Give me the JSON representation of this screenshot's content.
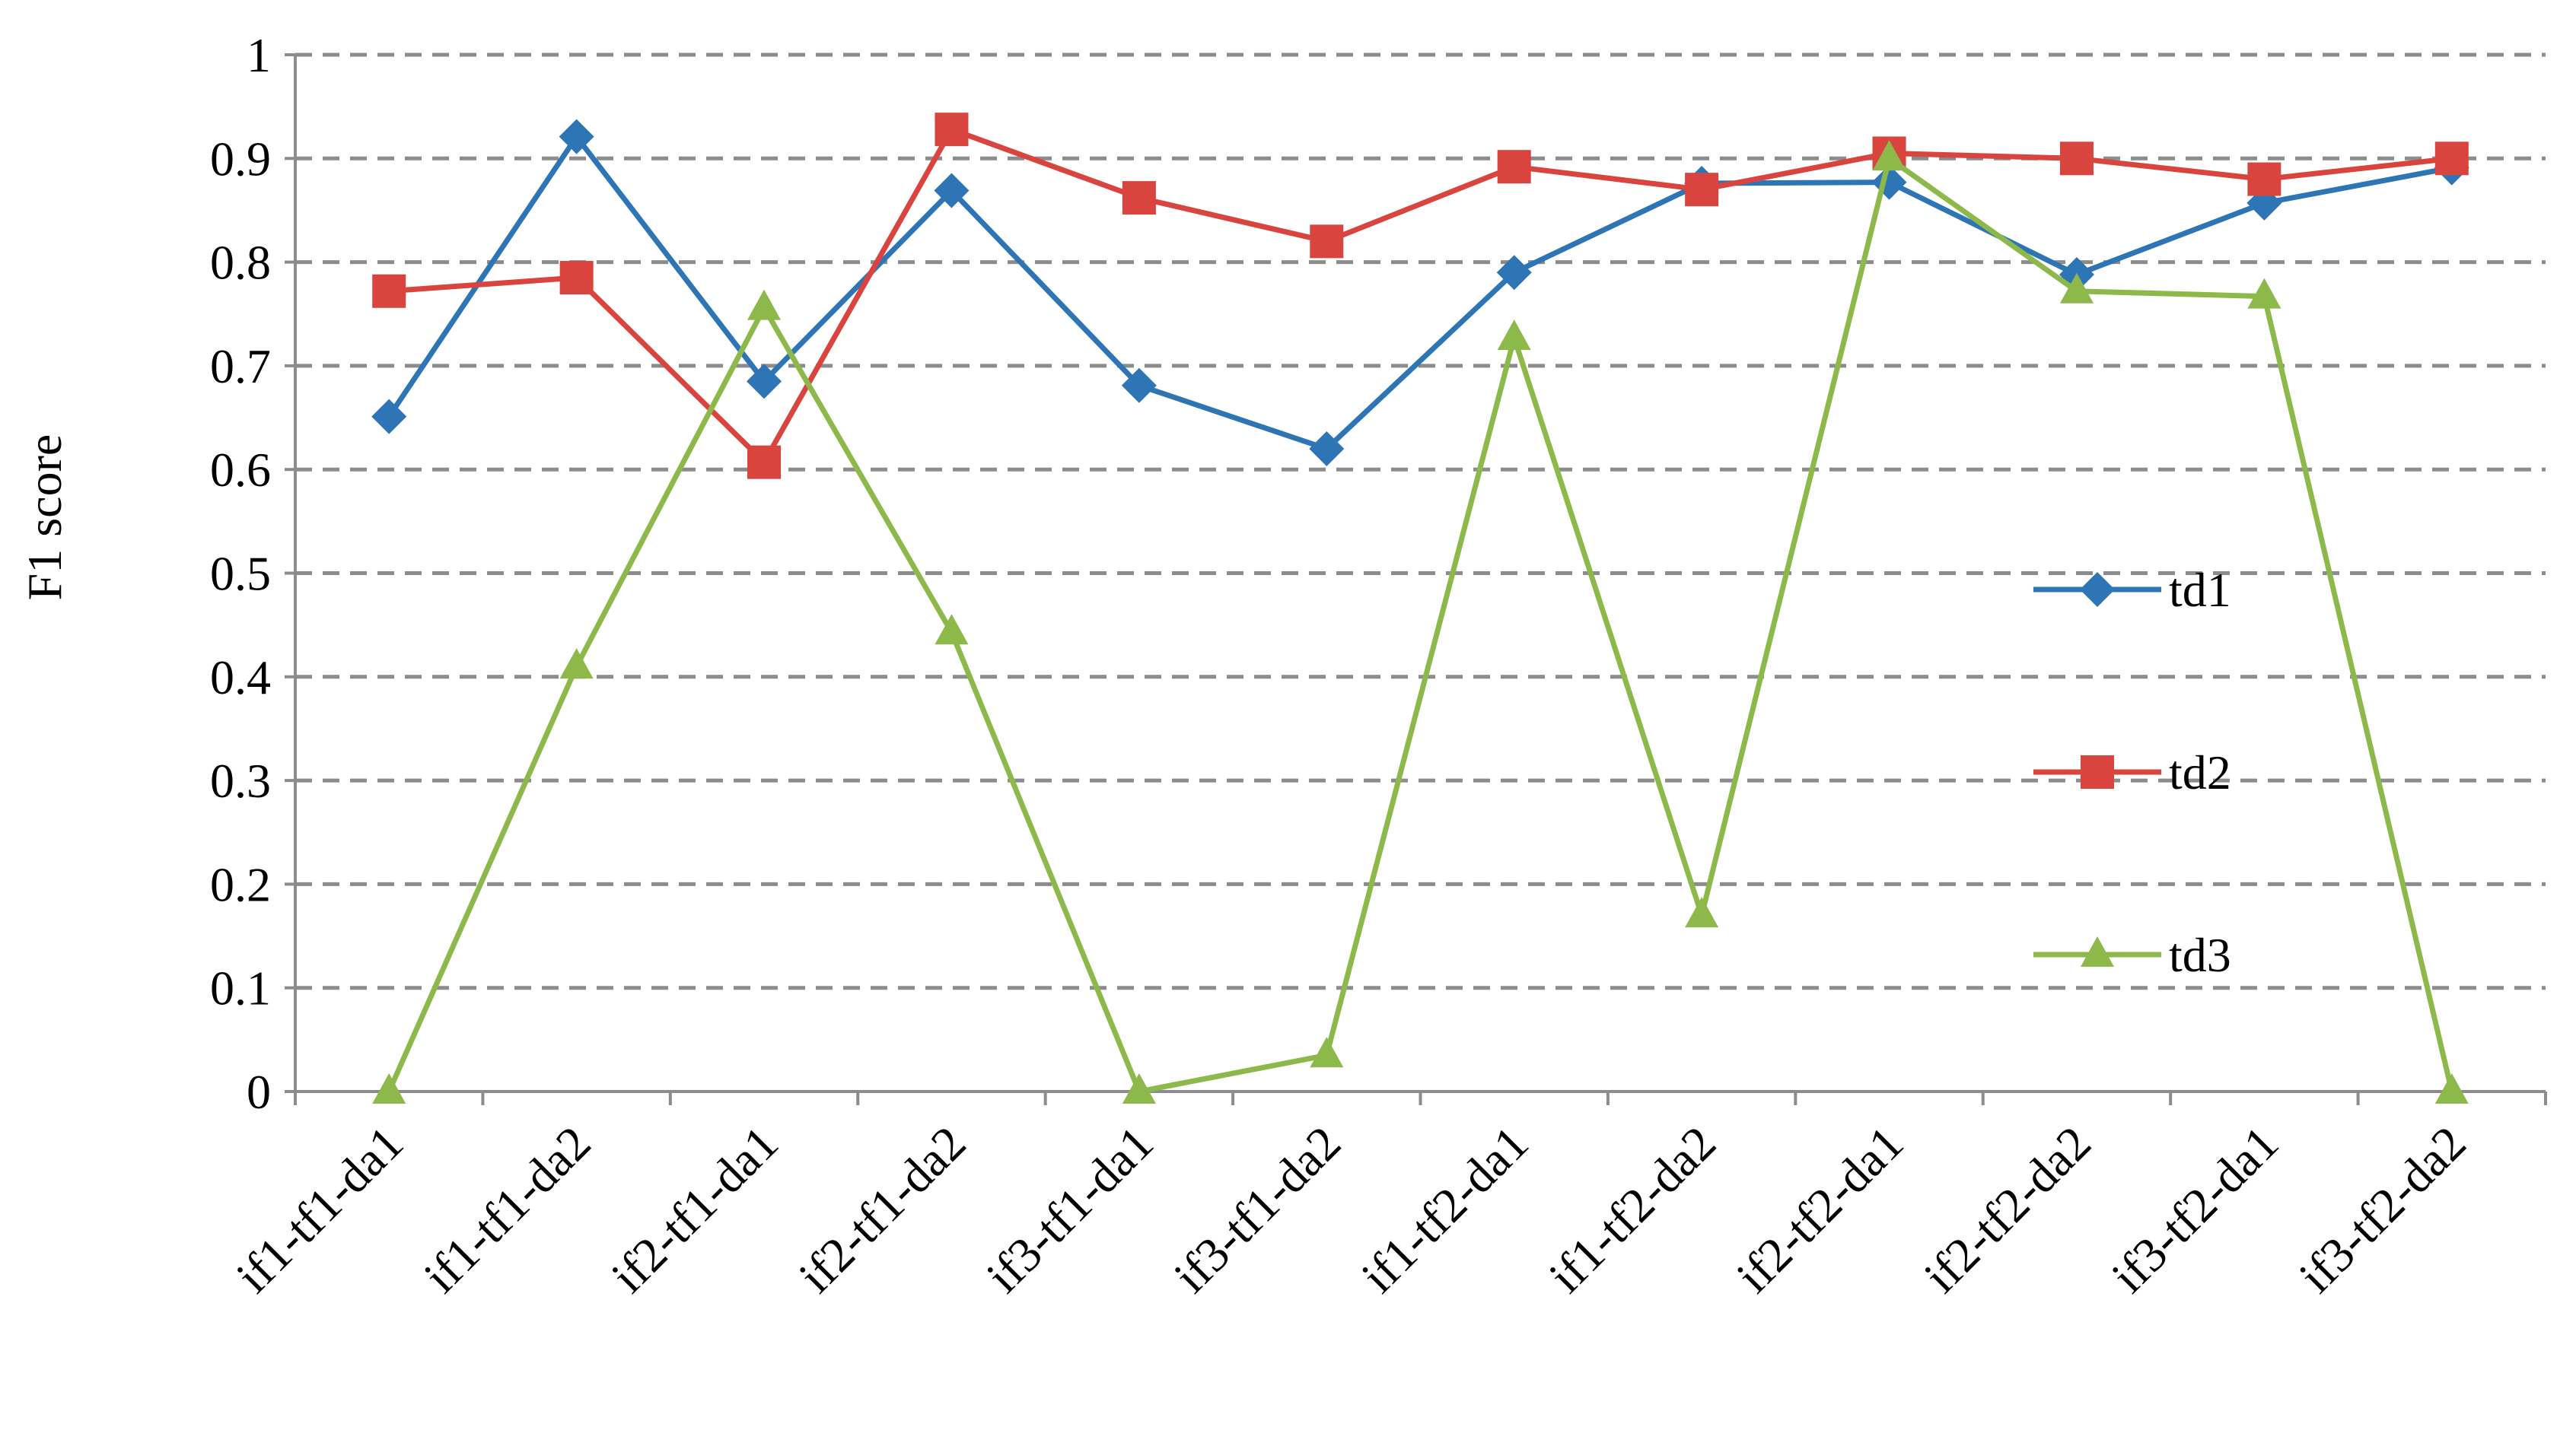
{
  "chart_data": {
    "type": "line",
    "title": "",
    "xlabel": "",
    "ylabel": "F1 score",
    "ylim": [
      0,
      1
    ],
    "yticks": [
      "0",
      "0.1",
      "0.2",
      "0.3",
      "0.4",
      "0.5",
      "0.6",
      "0.7",
      "0.8",
      "0.9",
      "1"
    ],
    "grid": "horizontal dashed",
    "legend_position": "right",
    "categories": [
      "if1-tf1-da1",
      "if1-tf1-da2",
      "if2-tf1-da1",
      "if2-tf1-da2",
      "if3-tf1-da1",
      "if3-tf1-da2",
      "if1-tf2-da1",
      "if1-tf2-da2",
      "if2-tf2-da1",
      "if2-tf2-da2",
      "if3-tf2-da1",
      "if3-tf2-da2"
    ],
    "series": [
      {
        "name": "td1",
        "color": "#2e75b6",
        "marker": "diamond",
        "values": [
          0.651,
          0.921,
          0.685,
          0.869,
          0.681,
          0.62,
          0.79,
          0.876,
          0.877,
          0.788,
          0.857,
          0.891
        ]
      },
      {
        "name": "td2",
        "color": "#d9443f",
        "marker": "square",
        "values": [
          0.772,
          0.785,
          0.607,
          0.928,
          0.862,
          0.82,
          0.892,
          0.87,
          0.905,
          0.9,
          0.88,
          0.9
        ]
      },
      {
        "name": "td3",
        "color": "#8db84a",
        "marker": "triangle",
        "values": [
          0,
          0.41,
          0.756,
          0.443,
          0,
          0.035,
          0.727,
          0.17,
          0.9,
          0.772,
          0.767,
          0
        ]
      }
    ]
  }
}
